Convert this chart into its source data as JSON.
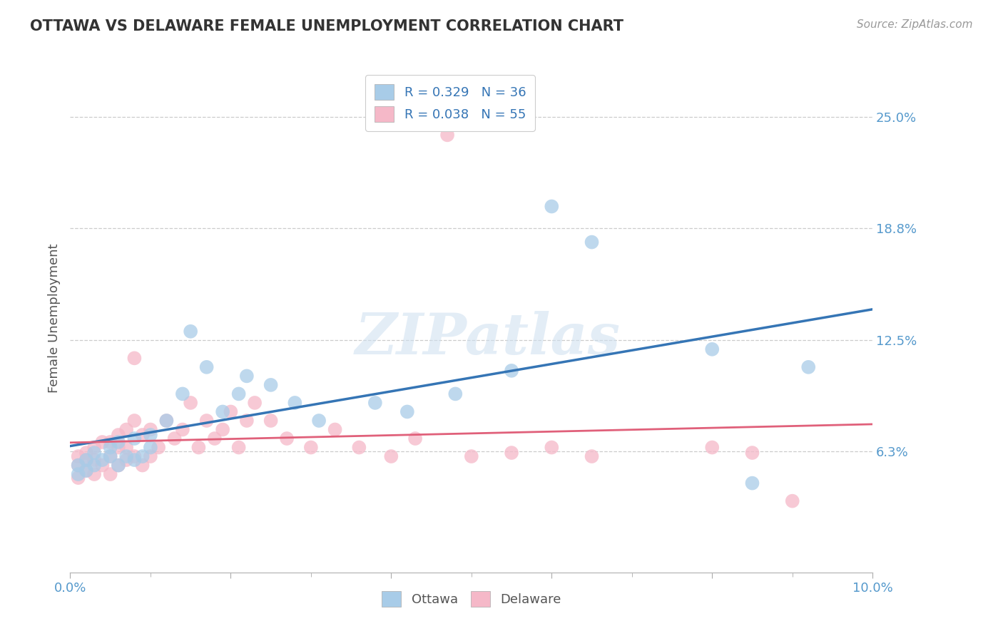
{
  "title": "OTTAWA VS DELAWARE FEMALE UNEMPLOYMENT CORRELATION CHART",
  "source_text": "Source: ZipAtlas.com",
  "ylabel": "Female Unemployment",
  "xlim": [
    0.0,
    0.1
  ],
  "ylim": [
    -0.005,
    0.28
  ],
  "yticks": [
    0.063,
    0.125,
    0.188,
    0.25
  ],
  "ytick_labels": [
    "6.3%",
    "12.5%",
    "18.8%",
    "25.0%"
  ],
  "xticks": [
    0.0,
    0.02,
    0.04,
    0.06,
    0.08,
    0.1
  ],
  "xtick_labels": [
    "0.0%",
    "",
    "",
    "",
    "",
    "10.0%"
  ],
  "ottawa_color": "#a8cce8",
  "delaware_color": "#f5b8c8",
  "ottawa_line_color": "#3575b5",
  "delaware_line_color": "#e0607a",
  "legend_ottawa_label": "R = 0.329   N = 36",
  "legend_delaware_label": "R = 0.038   N = 55",
  "legend_title_ottawa": "Ottawa",
  "legend_title_delaware": "Delaware",
  "watermark": "ZIPatlas",
  "title_color": "#333333",
  "axis_label_color": "#555555",
  "tick_color": "#5599cc",
  "grid_color": "#cccccc",
  "ottawa_x": [
    0.001,
    0.001,
    0.002,
    0.002,
    0.003,
    0.003,
    0.004,
    0.005,
    0.005,
    0.006,
    0.006,
    0.007,
    0.008,
    0.008,
    0.009,
    0.01,
    0.01,
    0.012,
    0.014,
    0.015,
    0.017,
    0.019,
    0.021,
    0.022,
    0.025,
    0.028,
    0.031,
    0.038,
    0.042,
    0.048,
    0.055,
    0.06,
    0.065,
    0.08,
    0.085,
    0.092
  ],
  "ottawa_y": [
    0.05,
    0.055,
    0.052,
    0.058,
    0.055,
    0.062,
    0.058,
    0.06,
    0.065,
    0.055,
    0.068,
    0.06,
    0.058,
    0.07,
    0.06,
    0.065,
    0.072,
    0.08,
    0.095,
    0.13,
    0.11,
    0.085,
    0.095,
    0.105,
    0.1,
    0.09,
    0.08,
    0.09,
    0.085,
    0.095,
    0.108,
    0.2,
    0.18,
    0.12,
    0.045,
    0.11
  ],
  "delaware_x": [
    0.001,
    0.001,
    0.001,
    0.002,
    0.002,
    0.002,
    0.003,
    0.003,
    0.003,
    0.004,
    0.004,
    0.005,
    0.005,
    0.005,
    0.006,
    0.006,
    0.006,
    0.007,
    0.007,
    0.007,
    0.008,
    0.008,
    0.008,
    0.009,
    0.009,
    0.01,
    0.01,
    0.011,
    0.012,
    0.013,
    0.014,
    0.015,
    0.016,
    0.017,
    0.018,
    0.019,
    0.02,
    0.021,
    0.022,
    0.023,
    0.025,
    0.027,
    0.03,
    0.033,
    0.036,
    0.04,
    0.043,
    0.047,
    0.05,
    0.055,
    0.06,
    0.065,
    0.08,
    0.085,
    0.09
  ],
  "delaware_y": [
    0.048,
    0.055,
    0.06,
    0.052,
    0.058,
    0.062,
    0.05,
    0.058,
    0.065,
    0.055,
    0.068,
    0.05,
    0.06,
    0.068,
    0.055,
    0.065,
    0.072,
    0.058,
    0.065,
    0.075,
    0.06,
    0.08,
    0.115,
    0.055,
    0.072,
    0.06,
    0.075,
    0.065,
    0.08,
    0.07,
    0.075,
    0.09,
    0.065,
    0.08,
    0.07,
    0.075,
    0.085,
    0.065,
    0.08,
    0.09,
    0.08,
    0.07,
    0.065,
    0.075,
    0.065,
    0.06,
    0.07,
    0.24,
    0.06,
    0.062,
    0.065,
    0.06,
    0.065,
    0.062,
    0.035
  ]
}
